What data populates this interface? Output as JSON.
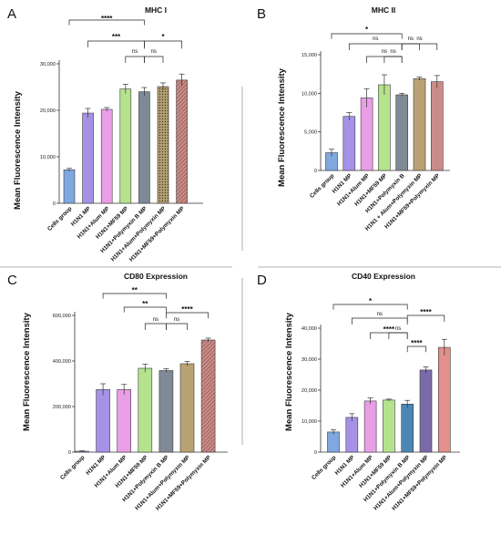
{
  "chart_data": [
    {
      "panel": "A",
      "type": "bar",
      "title": "MHC I",
      "ylabel": "Mean Fluorescence Intensity",
      "ylim": [
        0,
        30000
      ],
      "yticks": [
        0,
        10000,
        20000,
        30000
      ],
      "ytick_labels": [
        "0",
        "10,000",
        "20,000",
        "30,000"
      ],
      "categories": [
        "Cells group",
        "H1N1 MP",
        "H1N1+Alum MP",
        "H1N1+MF59 MP",
        "H1N1+Polymyxin B MP",
        "H1N1+Alum+Polymyxin MP",
        "H1N1+MF59+Polymyxin MP"
      ],
      "values": [
        7200,
        19400,
        20200,
        24600,
        24000,
        25100,
        26500
      ],
      "errors": [
        300,
        1000,
        400,
        1000,
        900,
        800,
        1300
      ],
      "colors": [
        "#7fa7e0",
        "#a592e6",
        "#e99ee6",
        "#b5e38d",
        "#7f8a96",
        "#b8a273",
        "#c98c88"
      ],
      "patterns": [
        "solid",
        "solid",
        "solid",
        "solid",
        "solid",
        "dots",
        "hatch"
      ],
      "comparisons": [
        {
          "from": 0,
          "to": 4,
          "label": "****"
        },
        {
          "from": 1,
          "to": 4,
          "label": "***"
        },
        {
          "from": 3,
          "to": 4,
          "label": "ns"
        },
        {
          "from": 4,
          "to": 5,
          "label": "ns"
        },
        {
          "from": 4,
          "to": 6,
          "label": "*"
        }
      ]
    },
    {
      "panel": "B",
      "type": "bar",
      "title": "MHC II",
      "ylabel": "Mean Fluorescence Intensity",
      "ylim": [
        0,
        15000
      ],
      "yticks": [
        0,
        5000,
        10000,
        15000
      ],
      "ytick_labels": [
        "0",
        "5,000",
        "10,000",
        "15,000"
      ],
      "categories": [
        "Cells group",
        "H1N1 MP",
        "H1N1+Alum MP",
        "H1N1+MF59 MP",
        "H1N1+Polymyxin B",
        "H1N1 + Alum+Polymyxin MP",
        "H1N1+MF59+Polymyxin MP"
      ],
      "values": [
        2300,
        7000,
        9400,
        11100,
        9800,
        11900,
        11500
      ],
      "errors": [
        450,
        500,
        1200,
        1300,
        200,
        200,
        800
      ],
      "colors": [
        "#7fa7e0",
        "#a592e6",
        "#e99ee6",
        "#b5e38d",
        "#7f8a96",
        "#b8a273",
        "#c98c88"
      ],
      "patterns": [
        "solid",
        "solid",
        "solid",
        "solid",
        "solid",
        "solid",
        "solid"
      ],
      "comparisons": [
        {
          "from": 0,
          "to": 4,
          "label": "*"
        },
        {
          "from": 1,
          "to": 4,
          "label": "ns"
        },
        {
          "from": 2,
          "to": 4,
          "label": "ns"
        },
        {
          "from": 3,
          "to": 4,
          "label": "ns"
        },
        {
          "from": 4,
          "to": 5,
          "label": "ns"
        },
        {
          "from": 4,
          "to": 6,
          "label": "ns"
        }
      ]
    },
    {
      "panel": "C",
      "type": "bar",
      "title": "CD80 Expression",
      "ylabel": "Mean Fluorescence Intensity",
      "ylim": [
        0,
        600000
      ],
      "yticks": [
        0,
        200000,
        400000,
        600000
      ],
      "ytick_labels": [
        "0",
        "200,000",
        "400,000",
        "600,000"
      ],
      "categories": [
        "Cells group",
        "H1N1 MP",
        "H1N1+Alum MP",
        "H1N1+MF59 MP",
        "H1N1+Polymyxin B MP",
        "H1N1+Alum+Polymyxin MP",
        "H1N1+MF59+Polymyxin MP"
      ],
      "values": [
        4000,
        275000,
        275000,
        368000,
        358000,
        388000,
        492000
      ],
      "errors": [
        2000,
        25000,
        22000,
        18000,
        8000,
        10000,
        8000
      ],
      "colors": [
        "#7fa7e0",
        "#a592e6",
        "#e99ee6",
        "#b5e38d",
        "#7f8a96",
        "#b8a273",
        "#c98c88"
      ],
      "patterns": [
        "solid",
        "solid",
        "solid",
        "solid",
        "solid",
        "solid",
        "hatch"
      ],
      "comparisons": [
        {
          "from": 1,
          "to": 4,
          "label": "**"
        },
        {
          "from": 2,
          "to": 4,
          "label": "**"
        },
        {
          "from": 3,
          "to": 4,
          "label": "ns"
        },
        {
          "from": 4,
          "to": 5,
          "label": "ns"
        },
        {
          "from": 4,
          "to": 6,
          "label": "****"
        }
      ]
    },
    {
      "panel": "D",
      "type": "bar",
      "title": "CD40 Expression",
      "ylabel": "Mean Fluorescence Intensity",
      "ylim": [
        0,
        40000
      ],
      "yticks": [
        0,
        10000,
        20000,
        30000,
        40000
      ],
      "ytick_labels": [
        "0",
        "10,000",
        "20,000",
        "30,000",
        "40,000"
      ],
      "categories": [
        "Cells group",
        "H1N1 MP",
        "H1N1+Alum MP",
        "H1N1+MF59 MP",
        "H1N1+Polymyxin B MP",
        "H1N1+Alum+Polymyxin MP",
        "H1N1+MF59+Polymyxin MP"
      ],
      "values": [
        6500,
        11200,
        16500,
        16800,
        15500,
        26500,
        33800
      ],
      "errors": [
        700,
        1200,
        1000,
        300,
        1200,
        1000,
        2600
      ],
      "colors": [
        "#7fa7e0",
        "#a592e6",
        "#e99ee6",
        "#b5e38d",
        "#4a87b5",
        "#7a6aa8",
        "#e3908c"
      ],
      "patterns": [
        "solid",
        "solid",
        "solid",
        "solid",
        "solid",
        "solid",
        "solid"
      ],
      "comparisons": [
        {
          "from": 0,
          "to": 4,
          "label": "*"
        },
        {
          "from": 1,
          "to": 4,
          "label": "ns"
        },
        {
          "from": 2,
          "to": 4,
          "label": "****"
        },
        {
          "from": 3,
          "to": 4,
          "label": "ns"
        },
        {
          "from": 4,
          "to": 5,
          "label": "****"
        },
        {
          "from": 4,
          "to": 6,
          "label": "****"
        }
      ]
    }
  ]
}
